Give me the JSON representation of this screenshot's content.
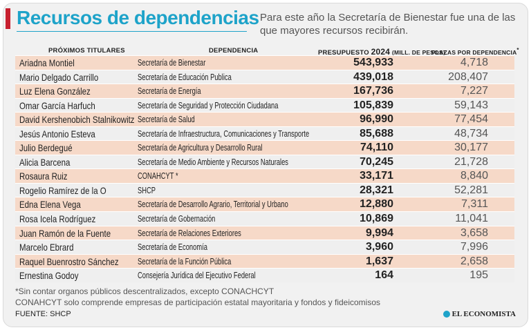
{
  "header": {
    "title": "Recursos de dependencias",
    "subtitle": "Para este año la Secretaría de Bienestar fue una de las que mayores recursos recibirán."
  },
  "columns": {
    "titular": "Próximos titulares",
    "dependencia": "Dependencia",
    "presupuesto_prefix": "Presupuesto",
    "presupuesto_year": "2024",
    "presupuesto_unit": "(mill. de pesos)",
    "plazas": "Plazas por dependencia",
    "plazas_mark": "*"
  },
  "rows": [
    {
      "titular": "Ariadna Montiel",
      "dependencia": "Secretaría de Bienestar",
      "presupuesto": "543,933",
      "plazas": "4,718"
    },
    {
      "titular": "Mario Delgado Carrillo",
      "dependencia": "Secretaría de Educación Publica",
      "presupuesto": "439,018",
      "plazas": "208,407"
    },
    {
      "titular": "Luz Elena González",
      "dependencia": "Secretaría de Energía",
      "presupuesto": "167,736",
      "plazas": "7,227"
    },
    {
      "titular": "Omar García Harfuch",
      "dependencia": "Secretaría de Seguridad y Protección Ciudadana",
      "presupuesto": "105,839",
      "plazas": "59,143"
    },
    {
      "titular": "David Kershenobich Stalnikowitz",
      "dependencia": "Secretaría de Salud",
      "presupuesto": "96,990",
      "plazas": "77,454"
    },
    {
      "titular": "Jesús Antonio Esteva",
      "dependencia": "Secretaría de Infraestructura, Comunicaciones y Transporte",
      "presupuesto": "85,688",
      "plazas": "48,734"
    },
    {
      "titular": "Julio Berdegué",
      "dependencia": "Secretaría de Agricultura y Desarrollo Rural",
      "presupuesto": "74,110",
      "plazas": "30,177"
    },
    {
      "titular": "Alicia Barcena",
      "dependencia": "Secretaría de Medio Ambiente y Recursos Naturales",
      "presupuesto": "70,245",
      "plazas": "21,728"
    },
    {
      "titular": "Rosaura Ruiz",
      "dependencia": "CONAHCYT *",
      "presupuesto": "33,171",
      "plazas": "8,840"
    },
    {
      "titular": "Rogelio Ramírez de la O",
      "dependencia": "SHCP",
      "presupuesto": "28,321",
      "plazas": "52,281"
    },
    {
      "titular": "Edna Elena Vega",
      "dependencia": "Secretaría de Desarrollo Agrario, Territorial y Urbano",
      "presupuesto": "12,880",
      "plazas": "7,311"
    },
    {
      "titular": "Rosa Icela Rodríguez",
      "dependencia": "Secretaría de Gobernación",
      "presupuesto": "10,869",
      "plazas": "11,041"
    },
    {
      "titular": "Juan Ramón de la Fuente",
      "dependencia": "Secretaría de Relaciones Exteriores",
      "presupuesto": "9,994",
      "plazas": "3,658"
    },
    {
      "titular": "Marcelo Ebrard",
      "dependencia": "Secretaría de Economía",
      "presupuesto": "3,960",
      "plazas": "7,996"
    },
    {
      "titular": "Raquel Buenrostro Sánchez",
      "dependencia": "Secretaría de la Función Pública",
      "presupuesto": "1,637",
      "plazas": "2,658"
    },
    {
      "titular": "Ernestina Godoy",
      "dependencia": "Consejería Jurídica del Ejecutivo Federal",
      "presupuesto": "164",
      "plazas": "195"
    }
  ],
  "footer": {
    "note1": "*Sin contar organos públicos descentralizados, excepto CONACHCYT",
    "note2": "CONAHCYT solo comprende empresas de participación estatal mayoritaria y fondos y fideicomisos",
    "source": "FUENTE: SHCP",
    "brand": "EL ECONOMISTA"
  },
  "colors": {
    "title": "#1ea3c9",
    "accent": "#c7202f",
    "row_highlight": "#f6d9c8",
    "row_plain": "#efefef"
  }
}
